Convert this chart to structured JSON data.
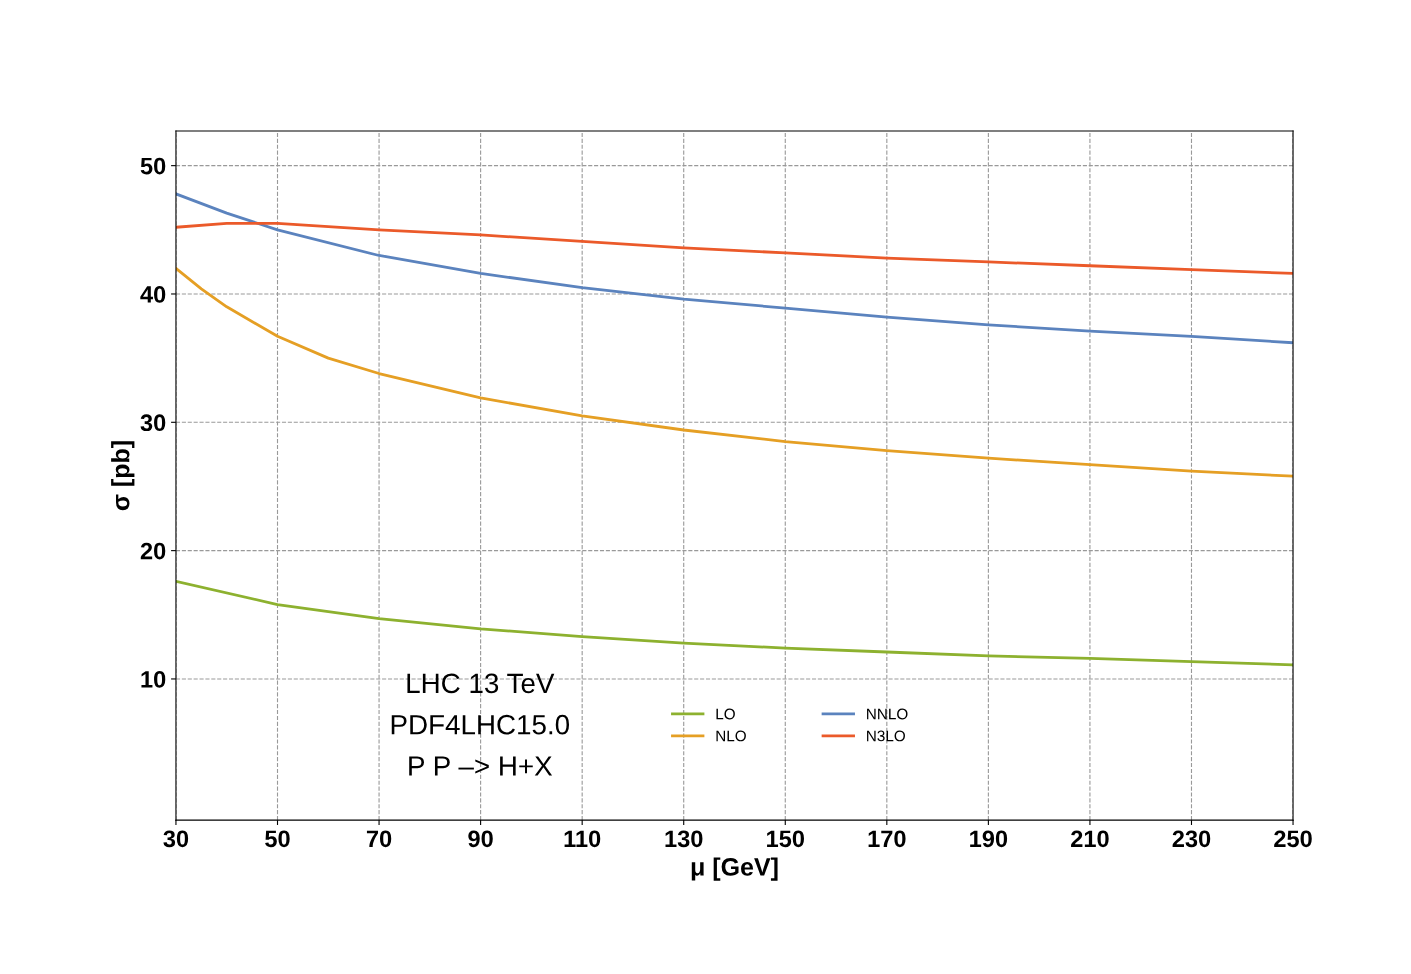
{
  "chart_data": {
    "type": "line",
    "xlabel": "μ [GeV]",
    "ylabel": "σ [pb]",
    "xlim": [
      30,
      250
    ],
    "xticks": [
      30,
      50,
      70,
      90,
      110,
      130,
      150,
      170,
      190,
      210,
      230,
      250
    ],
    "ylim": [
      -1,
      52.7
    ],
    "yticks": [
      10,
      20,
      30,
      40,
      50
    ],
    "grid": true,
    "legend": "bottom",
    "line_style": "solid",
    "marker": "none",
    "annotations": [
      "LHC 13 TeV",
      "PDF4LHC15.0",
      "P P –> H+X"
    ],
    "series": [
      {
        "name": "LO",
        "color": "#8db12f",
        "x": [
          30,
          50,
          70,
          90,
          110,
          130,
          150,
          170,
          190,
          210,
          230,
          250
        ],
        "values": [
          17.6,
          15.8,
          14.7,
          13.9,
          13.3,
          12.8,
          12.4,
          12.1,
          11.8,
          11.6,
          11.35,
          11.1
        ]
      },
      {
        "name": "NLO",
        "color": "#e59f24",
        "x": [
          30,
          35,
          40,
          50,
          60,
          70,
          90,
          110,
          130,
          150,
          170,
          190,
          210,
          230,
          250
        ],
        "values": [
          42.0,
          40.4,
          39.0,
          36.7,
          35.0,
          33.8,
          31.9,
          30.5,
          29.4,
          28.5,
          27.8,
          27.2,
          26.7,
          26.2,
          25.8
        ]
      },
      {
        "name": "NNLO",
        "color": "#5b83be",
        "x": [
          30,
          40,
          50,
          70,
          90,
          110,
          130,
          150,
          170,
          190,
          210,
          230,
          250
        ],
        "values": [
          47.8,
          46.3,
          45.0,
          43.0,
          41.6,
          40.5,
          39.6,
          38.9,
          38.2,
          37.6,
          37.1,
          36.7,
          36.2
        ]
      },
      {
        "name": "N3LO",
        "color": "#eb5a2a",
        "x": [
          30,
          40,
          50,
          70,
          90,
          110,
          130,
          150,
          170,
          190,
          210,
          230,
          250
        ],
        "values": [
          45.2,
          45.5,
          45.5,
          45.0,
          44.6,
          44.1,
          43.6,
          43.2,
          42.8,
          42.5,
          42.2,
          41.9,
          41.6
        ]
      }
    ]
  }
}
